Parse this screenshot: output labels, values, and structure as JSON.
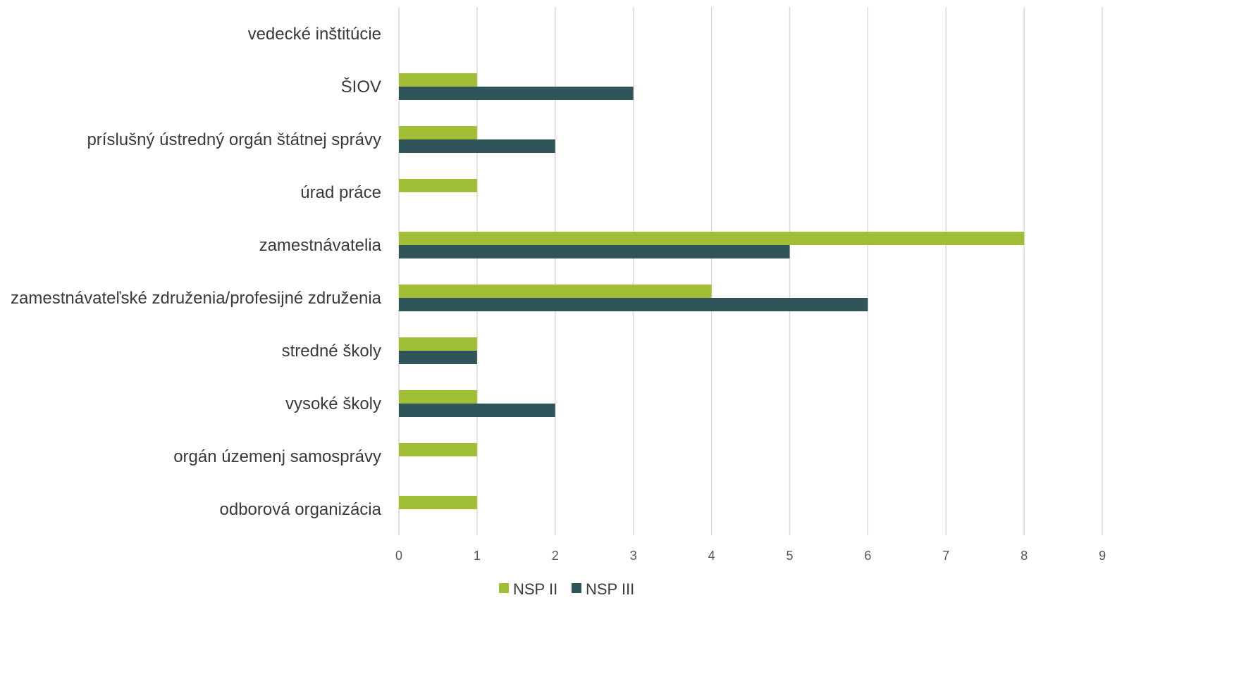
{
  "chart_data": {
    "type": "bar",
    "orientation": "horizontal",
    "categories": [
      "vedecké inštitúcie",
      "ŠIOV",
      "príslušný ústredný orgán štátnej správy",
      "úrad práce",
      "zamestnávatelia",
      "zamestnávateľské združenia/profesijné združenia",
      "stredné školy",
      "vysoké školy",
      "orgán územenj samosprávy",
      "odborová organizácia"
    ],
    "series": [
      {
        "name": "NSP II",
        "color": "#a1bf36",
        "values": [
          0,
          1,
          1,
          1,
          8,
          4,
          1,
          1,
          1,
          1
        ]
      },
      {
        "name": "NSP III",
        "color": "#2f5459",
        "values": [
          0,
          3,
          2,
          0,
          5,
          6,
          1,
          2,
          0,
          0
        ]
      }
    ],
    "x_ticks": [
      "0",
      "1",
      "2",
      "3",
      "4",
      "5",
      "6",
      "7",
      "8",
      "9"
    ],
    "xlim": [
      0,
      9
    ],
    "grid": true,
    "legend_position": "bottom",
    "title": "",
    "xlabel": "",
    "ylabel": ""
  }
}
